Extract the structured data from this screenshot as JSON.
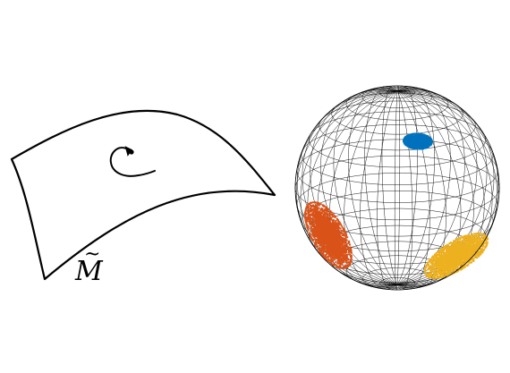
{
  "manifold": {
    "label": "M",
    "label_accent": "~",
    "rotation_icon": "counterclockwise-rotation-arrow"
  },
  "sphere": {
    "wireframe": true,
    "clusters": [
      {
        "id": "cluster-top",
        "color": "#0072BD"
      },
      {
        "id": "cluster-left",
        "color": "#D95319"
      },
      {
        "id": "cluster-right",
        "color": "#EDB120"
      }
    ]
  }
}
